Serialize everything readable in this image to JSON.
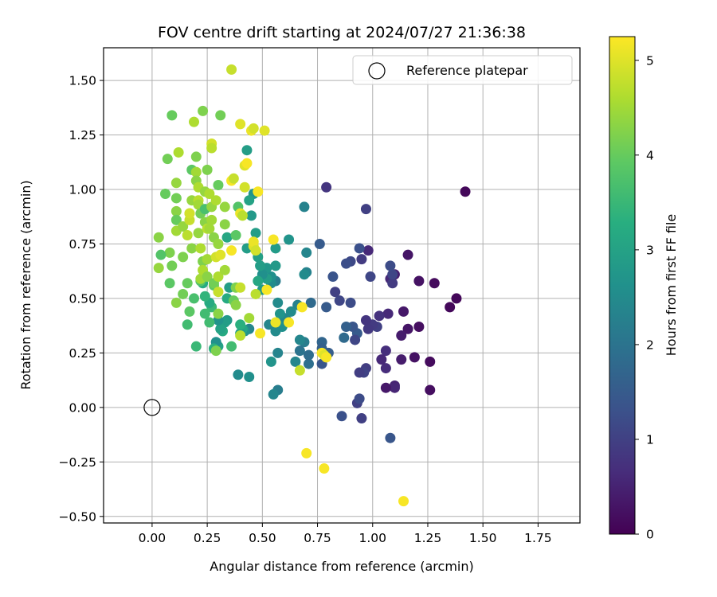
{
  "chart_data": {
    "type": "scatter",
    "title": "FOV centre drift starting at 2024/07/27 21:36:38",
    "xlabel": "Angular distance from reference (arcmin)",
    "ylabel": "Rotation from reference (arcmin)",
    "xlim": [
      -0.22,
      1.94
    ],
    "ylim": [
      -0.53,
      1.65
    ],
    "xticks": [
      "0.00",
      "0.25",
      "0.50",
      "0.75",
      "1.00",
      "1.25",
      "1.50",
      "1.75"
    ],
    "xtick_values": [
      0,
      0.25,
      0.5,
      0.75,
      1.0,
      1.25,
      1.5,
      1.75
    ],
    "yticks": [
      "−0.50",
      "−0.25",
      "0.00",
      "0.25",
      "0.50",
      "0.75",
      "1.00",
      "1.25",
      "1.50"
    ],
    "ytick_values": [
      -0.5,
      -0.25,
      0,
      0.25,
      0.5,
      0.75,
      1.0,
      1.25,
      1.5
    ],
    "grid": true,
    "legend": {
      "position": "top-right",
      "entries": [
        "Reference platepar"
      ]
    },
    "reference_point": {
      "x": 0.0,
      "y": 0.0,
      "label": "Reference platepar"
    },
    "colorbar": {
      "label": "Hours from first FF file",
      "range": [
        0,
        5.25
      ],
      "ticks": [
        "0",
        "1",
        "2",
        "3",
        "4",
        "5"
      ],
      "tick_values": [
        0,
        1,
        2,
        3,
        4,
        5
      ],
      "colormap": "viridis"
    },
    "points": [
      [
        1.42,
        0.99,
        0.1
      ],
      [
        1.38,
        0.5,
        0.1
      ],
      [
        1.35,
        0.46,
        0.1
      ],
      [
        1.28,
        0.57,
        0.15
      ],
      [
        1.26,
        0.21,
        0.15
      ],
      [
        1.26,
        0.08,
        0.2
      ],
      [
        1.21,
        0.58,
        0.25
      ],
      [
        1.21,
        0.37,
        0.2
      ],
      [
        1.19,
        0.23,
        0.25
      ],
      [
        1.16,
        0.7,
        0.3
      ],
      [
        1.16,
        0.36,
        0.3
      ],
      [
        1.14,
        0.44,
        0.35
      ],
      [
        1.13,
        0.22,
        0.4
      ],
      [
        1.13,
        0.33,
        0.4
      ],
      [
        1.1,
        0.61,
        0.45
      ],
      [
        1.1,
        0.1,
        0.5
      ],
      [
        1.1,
        0.09,
        0.55
      ],
      [
        1.08,
        0.59,
        0.6
      ],
      [
        1.07,
        0.43,
        0.6
      ],
      [
        1.06,
        0.09,
        0.35
      ],
      [
        1.06,
        0.18,
        0.65
      ],
      [
        1.09,
        0.57,
        0.9
      ],
      [
        1.09,
        0.61,
        1.1
      ],
      [
        1.08,
        0.65,
        1.2
      ],
      [
        1.08,
        -0.14,
        1.4
      ],
      [
        1.06,
        0.26,
        0.7
      ],
      [
        1.04,
        0.22,
        0.6
      ],
      [
        1.03,
        0.42,
        0.75
      ],
      [
        1.02,
        0.37,
        1.0
      ],
      [
        1.0,
        0.38,
        0.9
      ],
      [
        0.98,
        0.36,
        0.85
      ],
      [
        0.98,
        0.72,
        0.6
      ],
      [
        0.97,
        0.4,
        0.8
      ],
      [
        0.97,
        0.91,
        1.0
      ],
      [
        0.97,
        0.18,
        0.95
      ],
      [
        0.96,
        0.16,
        1.05
      ],
      [
        0.99,
        0.6,
        1.1
      ],
      [
        0.95,
        0.68,
        0.9
      ],
      [
        0.95,
        -0.05,
        1.0
      ],
      [
        0.94,
        0.16,
        0.95
      ],
      [
        0.93,
        0.02,
        1.0
      ],
      [
        0.94,
        0.04,
        1.2
      ],
      [
        0.94,
        0.73,
        1.3
      ],
      [
        0.93,
        0.34,
        1.5
      ],
      [
        0.92,
        0.31,
        1.1
      ],
      [
        0.91,
        0.37,
        1.4
      ],
      [
        0.9,
        0.48,
        1.2
      ],
      [
        0.9,
        0.67,
        1.15
      ],
      [
        0.88,
        0.66,
        1.25
      ],
      [
        0.88,
        0.37,
        1.6
      ],
      [
        0.87,
        0.32,
        1.8
      ],
      [
        0.86,
        -0.04,
        1.3
      ],
      [
        0.85,
        0.49,
        1.1
      ],
      [
        0.83,
        0.53,
        1.0
      ],
      [
        0.82,
        0.6,
        1.35
      ],
      [
        0.8,
        0.25,
        1.55
      ],
      [
        0.79,
        0.46,
        1.5
      ],
      [
        0.79,
        1.01,
        0.8
      ],
      [
        0.77,
        0.3,
        1.7
      ],
      [
        0.77,
        0.2,
        1.4
      ],
      [
        0.77,
        0.27,
        1.6
      ],
      [
        0.76,
        0.75,
        1.5
      ],
      [
        0.72,
        0.48,
        1.8
      ],
      [
        0.71,
        0.2,
        1.9
      ],
      [
        0.71,
        0.24,
        1.85
      ],
      [
        0.7,
        0.71,
        2.4
      ],
      [
        0.7,
        0.62,
        2.3
      ],
      [
        0.69,
        0.61,
        2.5
      ],
      [
        0.69,
        0.92,
        2.3
      ],
      [
        0.69,
        0.3,
        2.2
      ],
      [
        0.67,
        0.26,
        2.0
      ],
      [
        0.67,
        0.31,
        2.4
      ],
      [
        0.66,
        0.47,
        2.3
      ],
      [
        0.65,
        0.21,
        2.4
      ],
      [
        0.63,
        0.44,
        2.5
      ],
      [
        0.62,
        0.77,
        2.7
      ],
      [
        0.61,
        0.4,
        2.1
      ],
      [
        0.6,
        0.41,
        2.4
      ],
      [
        0.59,
        0.37,
        2.6
      ],
      [
        0.58,
        0.43,
        2.7
      ],
      [
        0.57,
        0.48,
        2.5
      ],
      [
        0.56,
        0.35,
        2.5
      ],
      [
        0.57,
        0.25,
        2.35
      ],
      [
        0.57,
        0.08,
        2.2
      ],
      [
        0.56,
        0.58,
        2.2
      ],
      [
        0.56,
        0.65,
        2.8
      ],
      [
        0.56,
        0.73,
        2.85
      ],
      [
        0.54,
        0.57,
        2.5
      ],
      [
        0.54,
        0.6,
        2.6
      ],
      [
        0.54,
        0.21,
        2.7
      ],
      [
        0.53,
        0.38,
        2.4
      ],
      [
        0.52,
        0.64,
        2.75
      ],
      [
        0.52,
        0.59,
        2.9
      ],
      [
        0.5,
        0.54,
        2.8
      ],
      [
        0.5,
        0.61,
        2.6
      ],
      [
        0.49,
        0.65,
        2.9
      ],
      [
        0.48,
        0.58,
        3.1
      ],
      [
        0.48,
        0.69,
        2.95
      ],
      [
        0.47,
        0.8,
        2.9
      ],
      [
        0.46,
        0.98,
        2.7
      ],
      [
        0.45,
        0.88,
        2.8
      ],
      [
        0.44,
        0.95,
        3.0
      ],
      [
        0.43,
        1.18,
        2.9
      ],
      [
        0.43,
        0.73,
        2.9
      ],
      [
        0.44,
        0.36,
        2.4
      ],
      [
        0.42,
        0.35,
        2.7
      ],
      [
        0.41,
        0.36,
        3.1
      ],
      [
        0.4,
        0.34,
        2.9
      ],
      [
        0.4,
        0.38,
        3.3
      ],
      [
        0.39,
        0.15,
        2.5
      ],
      [
        0.44,
        0.14,
        2.6
      ],
      [
        0.55,
        0.06,
        2.4
      ],
      [
        0.34,
        0.4,
        2.8
      ],
      [
        0.33,
        0.39,
        2.9
      ],
      [
        0.32,
        0.35,
        3.2
      ],
      [
        0.31,
        0.36,
        3.0
      ],
      [
        0.3,
        0.4,
        2.7
      ],
      [
        0.3,
        0.28,
        3.0
      ],
      [
        0.29,
        0.3,
        2.6
      ],
      [
        0.28,
        0.27,
        3.3
      ],
      [
        0.27,
        0.46,
        3.5
      ],
      [
        0.26,
        0.48,
        3.2
      ],
      [
        0.26,
        0.39,
        3.6
      ],
      [
        0.24,
        0.43,
        3.6
      ],
      [
        0.24,
        0.51,
        3.4
      ],
      [
        0.23,
        0.57,
        3.2
      ],
      [
        0.22,
        0.58,
        3.8
      ],
      [
        0.2,
        0.28,
        3.5
      ],
      [
        0.19,
        0.5,
        3.7
      ],
      [
        0.17,
        0.44,
        3.9
      ],
      [
        0.16,
        0.57,
        4.0
      ],
      [
        0.16,
        0.38,
        3.6
      ],
      [
        0.14,
        0.52,
        4.1
      ],
      [
        0.11,
        0.48,
        4.3
      ],
      [
        0.09,
        0.65,
        4.1
      ],
      [
        0.08,
        0.57,
        3.9
      ],
      [
        0.08,
        0.71,
        4.2
      ],
      [
        0.06,
        0.98,
        4.0
      ],
      [
        0.04,
        0.7,
        3.8
      ],
      [
        0.03,
        0.64,
        4.4
      ],
      [
        0.03,
        0.78,
        4.3
      ],
      [
        0.07,
        1.14,
        4.1
      ],
      [
        0.09,
        1.34,
        4.0
      ],
      [
        0.11,
        0.9,
        4.3
      ],
      [
        0.11,
        1.03,
        4.4
      ],
      [
        0.11,
        0.81,
        4.5
      ],
      [
        0.11,
        0.86,
        4.0
      ],
      [
        0.11,
        0.96,
        4.1
      ],
      [
        0.12,
        1.17,
        4.6
      ],
      [
        0.14,
        0.69,
        4.2
      ],
      [
        0.14,
        0.83,
        4.4
      ],
      [
        0.16,
        0.79,
        4.7
      ],
      [
        0.17,
        0.86,
        4.8
      ],
      [
        0.17,
        0.89,
        4.6
      ],
      [
        0.17,
        0.89,
        4.9
      ],
      [
        0.18,
        0.73,
        4.3
      ],
      [
        0.18,
        1.09,
        3.9
      ],
      [
        0.18,
        0.95,
        4.4
      ],
      [
        0.19,
        1.31,
        4.6
      ],
      [
        0.2,
        1.15,
        4.2
      ],
      [
        0.2,
        1.08,
        4.5
      ],
      [
        0.2,
        1.04,
        4.3
      ],
      [
        0.21,
        0.8,
        4.4
      ],
      [
        0.21,
        1.01,
        4.6
      ],
      [
        0.21,
        0.95,
        4.7
      ],
      [
        0.21,
        0.93,
        4.5
      ],
      [
        0.22,
        0.89,
        4.1
      ],
      [
        0.22,
        0.59,
        4.5
      ],
      [
        0.22,
        0.73,
        4.6
      ],
      [
        0.23,
        1.36,
        4.2
      ],
      [
        0.23,
        0.67,
        4.2
      ],
      [
        0.23,
        0.63,
        4.6
      ],
      [
        0.24,
        0.99,
        4.4
      ],
      [
        0.24,
        0.85,
        4.3
      ],
      [
        0.24,
        0.91,
        3.7
      ],
      [
        0.25,
        1.09,
        4.2
      ],
      [
        0.25,
        0.82,
        4.7
      ],
      [
        0.25,
        0.68,
        4.5
      ],
      [
        0.25,
        0.6,
        4.3
      ],
      [
        0.26,
        0.98,
        4.6
      ],
      [
        0.26,
        0.82,
        4.5
      ],
      [
        0.27,
        1.21,
        4.9
      ],
      [
        0.27,
        1.19,
        4.7
      ],
      [
        0.27,
        0.92,
        4.4
      ],
      [
        0.27,
        0.86,
        4.5
      ],
      [
        0.28,
        0.78,
        4.3
      ],
      [
        0.28,
        0.56,
        3.9
      ],
      [
        0.28,
        0.57,
        4.1
      ],
      [
        0.29,
        0.95,
        4.6
      ],
      [
        0.29,
        0.69,
        4.9
      ],
      [
        0.29,
        0.26,
        4.2
      ],
      [
        0.3,
        1.02,
        4.0
      ],
      [
        0.3,
        0.75,
        4.4
      ],
      [
        0.3,
        0.43,
        4.3
      ],
      [
        0.3,
        0.6,
        4.6
      ],
      [
        0.3,
        0.53,
        4.8
      ],
      [
        0.31,
        1.34,
        4.1
      ],
      [
        0.31,
        0.7,
        5.0
      ],
      [
        0.33,
        0.63,
        4.5
      ],
      [
        0.33,
        0.92,
        4.4
      ],
      [
        0.33,
        0.84,
        4.3
      ],
      [
        0.34,
        0.78,
        3.1
      ],
      [
        0.34,
        0.5,
        3.2
      ],
      [
        0.35,
        0.55,
        2.9
      ],
      [
        0.36,
        0.72,
        5.2
      ],
      [
        0.36,
        1.55,
        4.8
      ],
      [
        0.36,
        1.04,
        5.2
      ],
      [
        0.36,
        0.28,
        3.6
      ],
      [
        0.37,
        1.05,
        4.8
      ],
      [
        0.37,
        0.49,
        4.0
      ],
      [
        0.38,
        0.47,
        4.3
      ],
      [
        0.38,
        0.79,
        3.9
      ],
      [
        0.38,
        0.55,
        4.2
      ],
      [
        0.39,
        0.92,
        3.8
      ],
      [
        0.4,
        0.89,
        5.1
      ],
      [
        0.4,
        0.55,
        4.8
      ],
      [
        0.4,
        0.33,
        4.7
      ],
      [
        0.4,
        1.3,
        5.0
      ],
      [
        0.41,
        0.88,
        4.7
      ],
      [
        0.42,
        1.11,
        5.0
      ],
      [
        0.42,
        1.01,
        4.9
      ],
      [
        0.43,
        1.12,
        5.2
      ],
      [
        0.44,
        0.41,
        4.5
      ],
      [
        0.45,
        1.27,
        5.1
      ],
      [
        0.46,
        0.74,
        5.0
      ],
      [
        0.46,
        1.28,
        4.9
      ],
      [
        0.46,
        0.76,
        5.1
      ],
      [
        0.47,
        0.52,
        4.7
      ],
      [
        0.47,
        0.72,
        4.9
      ],
      [
        0.48,
        0.99,
        5.2
      ],
      [
        0.49,
        0.34,
        5.2
      ],
      [
        0.51,
        1.27,
        5.0
      ],
      [
        0.52,
        0.54,
        5.2
      ],
      [
        0.55,
        0.77,
        5.2
      ],
      [
        0.56,
        0.39,
        5.1
      ],
      [
        0.62,
        0.39,
        5.2
      ],
      [
        0.67,
        0.17,
        4.8
      ],
      [
        0.68,
        0.46,
        5.2
      ],
      [
        0.7,
        -0.21,
        5.2
      ],
      [
        0.77,
        0.25,
        5.2
      ],
      [
        0.78,
        0.24,
        5.0
      ],
      [
        0.79,
        0.23,
        5.2
      ],
      [
        0.78,
        -0.28,
        5.2
      ],
      [
        1.14,
        -0.43,
        5.2
      ]
    ]
  }
}
